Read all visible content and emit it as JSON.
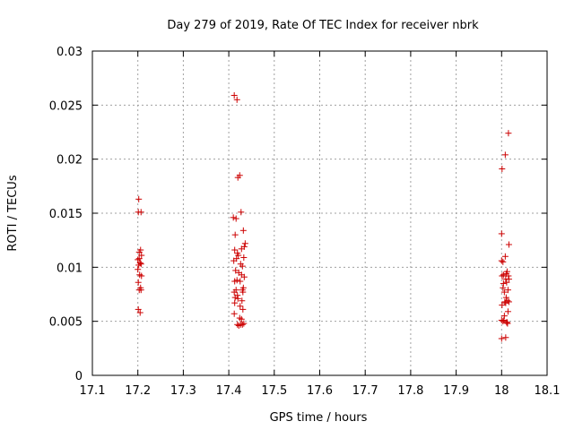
{
  "chart_data": {
    "type": "scatter",
    "title": "Day 279 of 2019, Rate Of TEC Index for receiver nbrk",
    "xlabel": "GPS time / hours",
    "ylabel": "ROTI / TECUs",
    "xlim": [
      17.1,
      18.1
    ],
    "ylim": [
      0,
      0.03
    ],
    "xticks": [
      "17.1",
      "17.2",
      "17.3",
      "17.4",
      "17.5",
      "17.6",
      "17.7",
      "17.8",
      "17.9",
      "18",
      "18.1"
    ],
    "yticks": [
      "0",
      "0.005",
      "0.01",
      "0.015",
      "0.02",
      "0.025",
      "0.03"
    ],
    "grid": true,
    "marker": "+",
    "colors": {
      "points": "#cc0000"
    },
    "series": [
      {
        "name": "ROTI",
        "x": [
          17.202,
          17.207,
          17.201,
          17.203,
          17.206,
          17.208,
          17.2,
          17.203,
          17.207,
          17.202,
          17.205,
          17.2,
          17.204,
          17.208,
          17.201,
          17.206,
          17.203,
          17.207,
          17.201,
          17.205,
          17.412,
          17.418,
          17.42,
          17.424,
          17.427,
          17.41,
          17.416,
          17.432,
          17.436,
          17.434,
          17.414,
          17.419,
          17.413,
          17.428,
          17.421,
          17.433,
          17.411,
          17.417,
          17.426,
          17.43,
          17.415,
          17.422,
          17.428,
          17.434,
          17.413,
          17.418,
          17.425,
          17.432,
          17.416,
          17.43,
          17.412,
          17.419,
          17.431,
          17.414,
          17.42,
          17.429,
          17.413,
          17.425,
          17.431,
          17.412,
          17.424,
          17.428,
          17.433,
          17.419,
          17.426,
          17.422,
          17.43,
          18.015,
          18.008,
          18.001,
          18.0,
          18.016,
          18.0,
          18.008,
          18.003,
          18.012,
          18.004,
          18.01,
          18.015,
          18.001,
          18.009,
          18.016,
          18.004,
          18.011,
          18.003,
          18.014,
          18.006,
          18.01,
          18.013,
          18.007,
          18.016,
          18.009,
          18.001,
          18.014,
          18.006,
          18.0,
          18.011,
          18.005,
          18.012,
          18.013,
          18.003,
          18.009,
          18.0
        ],
        "y": [
          0.0163,
          0.0151,
          0.0151,
          0.0114,
          0.0116,
          0.0111,
          0.0107,
          0.0108,
          0.0103,
          0.0102,
          0.0104,
          0.0098,
          0.0093,
          0.0092,
          0.0086,
          0.0081,
          0.0079,
          0.0079,
          0.0061,
          0.0058,
          0.0259,
          0.0255,
          0.0183,
          0.0185,
          0.0151,
          0.0146,
          0.0145,
          0.0134,
          0.0122,
          0.0119,
          0.013,
          0.0113,
          0.0116,
          0.0117,
          0.0111,
          0.0109,
          0.0106,
          0.0108,
          0.0103,
          0.0101,
          0.0097,
          0.0095,
          0.0093,
          0.0091,
          0.0087,
          0.0088,
          0.0087,
          0.0081,
          0.0079,
          0.0079,
          0.0077,
          0.0074,
          0.0077,
          0.0072,
          0.0071,
          0.0069,
          0.0067,
          0.0064,
          0.0061,
          0.0057,
          0.0053,
          0.0052,
          0.0048,
          0.0047,
          0.0047,
          0.0046,
          0.0047,
          0.0224,
          0.0204,
          0.0191,
          0.0131,
          0.0121,
          0.0106,
          0.011,
          0.0105,
          0.0096,
          0.0093,
          0.0094,
          0.0092,
          0.0092,
          0.0089,
          0.0089,
          0.0085,
          0.0086,
          0.0081,
          0.0079,
          0.0077,
          0.0072,
          0.0069,
          0.0068,
          0.0068,
          0.0067,
          0.0065,
          0.0059,
          0.0055,
          0.0051,
          0.0049,
          0.0051,
          0.0049,
          0.0048,
          0.005,
          0.0035,
          0.0034
        ]
      }
    ]
  }
}
